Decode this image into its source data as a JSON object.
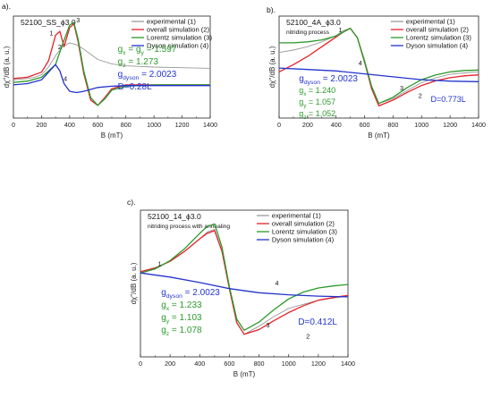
{
  "chart_data": [
    {
      "type": "line",
      "panel_label": "a).",
      "title": "52100_SS_ϕ3.0",
      "subtitle": "",
      "xlabel": "B (mT)",
      "ylabel": "dχ''/dB (a. u.)",
      "xlim": [
        0,
        1400
      ],
      "xticks": [
        0,
        200,
        400,
        600,
        800,
        1000,
        1200,
        1400
      ],
      "grid": false,
      "legend_position": "top-right",
      "series": [
        {
          "name": "experimental (1)",
          "color": "#999999",
          "x": [
            0,
            100,
            150,
            200,
            250,
            300,
            350,
            400,
            450,
            500,
            600,
            700,
            800,
            900,
            1000,
            1200,
            1400
          ],
          "y": [
            0.1,
            0.12,
            0.14,
            0.18,
            0.3,
            0.48,
            0.62,
            0.68,
            0.65,
            0.58,
            0.42,
            0.35,
            0.32,
            0.31,
            0.3,
            0.29,
            0.28
          ]
        },
        {
          "name": "overall simulation (2)",
          "color": "#e8202a",
          "x": [
            0,
            100,
            200,
            250,
            300,
            330,
            360,
            400,
            430,
            460,
            500,
            550,
            600,
            650,
            700,
            800,
            1000,
            1400
          ],
          "y": [
            0.12,
            0.14,
            0.22,
            0.4,
            0.8,
            0.86,
            0.62,
            0.92,
            0.98,
            0.7,
            0.2,
            -0.22,
            -0.3,
            -0.18,
            -0.04,
            0.02,
            0.02,
            0.02
          ]
        },
        {
          "name": "Lorentz simulation (3)",
          "color": "#2a9a2a",
          "x": [
            0,
            100,
            200,
            300,
            350,
            400,
            430,
            460,
            500,
            550,
            600,
            650,
            700,
            800,
            1000,
            1400
          ],
          "y": [
            0.06,
            0.08,
            0.14,
            0.34,
            0.66,
            0.96,
            1.0,
            0.74,
            0.24,
            -0.18,
            -0.3,
            -0.2,
            -0.06,
            0.0,
            0.02,
            0.02
          ]
        },
        {
          "name": "Dyson simulation (4)",
          "color": "#2233cc",
          "x": [
            0,
            100,
            200,
            250,
            300,
            330,
            360,
            400,
            450,
            500,
            600,
            700,
            800,
            1000,
            1400
          ],
          "y": [
            0.02,
            0.04,
            0.1,
            0.22,
            0.34,
            0.24,
            0.04,
            -0.08,
            -0.1,
            -0.08,
            -0.02,
            0.0,
            0.01,
            0.01,
            0.01
          ]
        }
      ],
      "curve_labels": [
        {
          "text": "1",
          "x": 270,
          "y": 0.8
        },
        {
          "text": "2",
          "x": 330,
          "y": 0.58
        },
        {
          "text": "3",
          "x": 460,
          "y": 1.0
        },
        {
          "text": "4",
          "x": 370,
          "y": 0.08
        }
      ],
      "annotations": [
        {
          "color": "#2a9a2a",
          "parts": [
            [
              "g",
              ""
            ],
            [
              "x",
              "sub"
            ],
            [
              " = g",
              ""
            ],
            [
              "y",
              "sub"
            ],
            [
              " = 1.597",
              ""
            ]
          ]
        },
        {
          "color": "#2a9a2a",
          "parts": [
            [
              "g",
              ""
            ],
            [
              "z",
              "sub"
            ],
            [
              " = 1.273",
              ""
            ]
          ]
        },
        {
          "color": "#2233cc",
          "parts": [
            [
              "g",
              ""
            ],
            [
              "dyson",
              "sub"
            ],
            [
              " = 2.0023",
              ""
            ]
          ]
        },
        {
          "color": "#2233cc",
          "parts": [
            [
              "D=0.28L",
              ""
            ]
          ]
        }
      ]
    },
    {
      "type": "line",
      "panel_label": "b).",
      "title": "52100_4A_ϕ3.0",
      "subtitle": "nitriding process",
      "xlabel": "B (mT)",
      "ylabel": "dχ''/dB (a. u.)",
      "xlim": [
        0,
        1400
      ],
      "xticks": [
        0,
        200,
        400,
        600,
        800,
        1000,
        1200,
        1400
      ],
      "grid": false,
      "legend_position": "top-right",
      "series": [
        {
          "name": "experimental (1)",
          "color": "#999999",
          "x": [
            0,
            100,
            200,
            300,
            400,
            450,
            500,
            550,
            600,
            650,
            700,
            800,
            900,
            1000,
            1100,
            1200,
            1300,
            1400
          ],
          "y": [
            0.5,
            0.55,
            0.62,
            0.72,
            0.85,
            0.95,
            1.0,
            0.8,
            0.35,
            -0.2,
            -0.55,
            -0.45,
            -0.28,
            -0.12,
            -0.02,
            0.05,
            0.08,
            0.1
          ]
        },
        {
          "name": "overall simulation (2)",
          "color": "#e8202a",
          "x": [
            0,
            100,
            200,
            300,
            400,
            450,
            500,
            550,
            600,
            650,
            700,
            800,
            900,
            1000,
            1100,
            1200,
            1300,
            1400
          ],
          "y": [
            0.1,
            0.25,
            0.42,
            0.62,
            0.82,
            0.92,
            1.0,
            0.8,
            0.3,
            -0.25,
            -0.6,
            -0.48,
            -0.32,
            -0.18,
            -0.08,
            -0.02,
            0.02,
            0.04
          ]
        },
        {
          "name": "Lorentz simulation (3)",
          "color": "#2a9a2a",
          "x": [
            0,
            100,
            200,
            300,
            400,
            450,
            500,
            550,
            600,
            650,
            700,
            800,
            900,
            1000,
            1100,
            1200,
            1300,
            1400
          ],
          "y": [
            0.7,
            0.7,
            0.72,
            0.76,
            0.84,
            0.92,
            1.0,
            0.8,
            0.3,
            -0.2,
            -0.55,
            -0.42,
            -0.22,
            -0.06,
            0.04,
            0.1,
            0.13,
            0.14
          ]
        },
        {
          "name": "Dyson simulation (4)",
          "color": "#2233cc",
          "x": [
            0,
            200,
            400,
            600,
            800,
            1000,
            1200,
            1400
          ],
          "y": [
            0.18,
            0.15,
            0.12,
            0.06,
            0.0,
            -0.06,
            -0.09,
            -0.1
          ]
        }
      ],
      "curve_labels": [
        {
          "text": "1",
          "x": 430,
          "y": 0.92
        },
        {
          "text": "4",
          "x": 570,
          "y": 0.24
        },
        {
          "text": "3",
          "x": 860,
          "y": -0.28
        },
        {
          "text": "2",
          "x": 990,
          "y": -0.44
        }
      ],
      "annotations": [
        {
          "color": "#2233cc",
          "parts": [
            [
              "g",
              ""
            ],
            [
              "dyson",
              "sub"
            ],
            [
              " = 2.0023",
              ""
            ]
          ]
        },
        {
          "color": "#2a9a2a",
          "parts": [
            [
              "g",
              ""
            ],
            [
              "x",
              "sub"
            ],
            [
              " = 1.240",
              ""
            ]
          ]
        },
        {
          "color": "#2a9a2a",
          "parts": [
            [
              "g",
              ""
            ],
            [
              "y",
              "sub"
            ],
            [
              " = 1.057",
              ""
            ]
          ]
        },
        {
          "color": "#2a9a2a",
          "parts": [
            [
              "g",
              ""
            ],
            [
              "z",
              "sub"
            ],
            [
              " = 1.052",
              ""
            ]
          ]
        },
        {
          "color": "#2233cc",
          "parts": [
            [
              "D=0.773L",
              ""
            ]
          ]
        }
      ]
    },
    {
      "type": "line",
      "panel_label": "c).",
      "title": "52100_14_ϕ3.0",
      "subtitle": "nitriding process with annealing",
      "xlabel": "B (mT)",
      "ylabel": "dχ''/dB (a. u.)",
      "xlim": [
        0,
        1400
      ],
      "xticks": [
        0,
        200,
        400,
        600,
        800,
        1000,
        1200,
        1400
      ],
      "grid": false,
      "legend_position": "top-right",
      "series": [
        {
          "name": "experimental (1)",
          "color": "#999999",
          "x": [
            0,
            100,
            200,
            300,
            400,
            450,
            500,
            550,
            600,
            650,
            700,
            800,
            900,
            1000,
            1200,
            1400
          ],
          "y": [
            0.3,
            0.36,
            0.45,
            0.6,
            0.78,
            0.88,
            0.92,
            0.6,
            0.05,
            -0.45,
            -0.62,
            -0.5,
            -0.36,
            -0.24,
            -0.12,
            -0.06
          ]
        },
        {
          "name": "overall simulation (2)",
          "color": "#e8202a",
          "x": [
            0,
            100,
            200,
            300,
            400,
            450,
            500,
            550,
            600,
            650,
            700,
            800,
            900,
            1000,
            1100,
            1200,
            1300,
            1400
          ],
          "y": [
            0.3,
            0.35,
            0.45,
            0.6,
            0.78,
            0.86,
            0.9,
            0.6,
            0.05,
            -0.45,
            -0.62,
            -0.55,
            -0.42,
            -0.3,
            -0.2,
            -0.12,
            -0.08,
            -0.05
          ]
        },
        {
          "name": "Lorentz simulation (3)",
          "color": "#2a9a2a",
          "x": [
            0,
            100,
            200,
            300,
            400,
            450,
            500,
            550,
            600,
            650,
            700,
            800,
            900,
            1000,
            1100,
            1200,
            1300,
            1400
          ],
          "y": [
            0.28,
            0.34,
            0.46,
            0.64,
            0.86,
            0.96,
            1.0,
            0.66,
            0.08,
            -0.4,
            -0.56,
            -0.44,
            -0.26,
            -0.1,
            0.0,
            0.06,
            0.09,
            0.11
          ]
        },
        {
          "name": "Dyson simulation (4)",
          "color": "#2233cc",
          "x": [
            0,
            200,
            400,
            600,
            800,
            1000,
            1200,
            1400
          ],
          "y": [
            0.28,
            0.22,
            0.14,
            0.05,
            -0.01,
            -0.04,
            -0.06,
            -0.07
          ]
        }
      ],
      "curve_labels": [
        {
          "text": "1",
          "x": 130,
          "y": 0.38
        },
        {
          "text": "4",
          "x": 920,
          "y": 0.1
        },
        {
          "text": "3",
          "x": 860,
          "y": -0.52
        },
        {
          "text": "2",
          "x": 1130,
          "y": -0.68
        }
      ],
      "annotations": [
        {
          "color": "#2233cc",
          "parts": [
            [
              "g",
              ""
            ],
            [
              "dyson",
              "sub"
            ],
            [
              " = 2.0023",
              ""
            ]
          ]
        },
        {
          "color": "#2a9a2a",
          "parts": [
            [
              "g",
              ""
            ],
            [
              "x",
              "sub"
            ],
            [
              " = 1.233",
              ""
            ]
          ]
        },
        {
          "color": "#2a9a2a",
          "parts": [
            [
              "g",
              ""
            ],
            [
              "y",
              "sub"
            ],
            [
              " = 1.103",
              ""
            ]
          ]
        },
        {
          "color": "#2a9a2a",
          "parts": [
            [
              "g",
              ""
            ],
            [
              "z",
              "sub"
            ],
            [
              " = 1.078",
              ""
            ]
          ]
        },
        {
          "color": "#2233cc",
          "parts": [
            [
              "D=0.412L",
              ""
            ]
          ]
        }
      ]
    }
  ]
}
